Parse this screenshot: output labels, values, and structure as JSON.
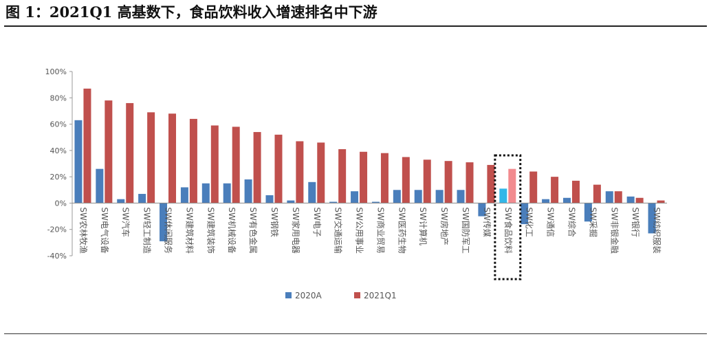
{
  "figure_title": "图 1：2021Q1 高基数下，食品饮料收入增速排名中下游",
  "chart_data": {
    "type": "bar",
    "ylim": [
      -40,
      100
    ],
    "yticks": [
      -40,
      -20,
      0,
      20,
      40,
      60,
      80,
      100
    ],
    "ytick_labels": [
      "-40%",
      "-20%",
      "0%",
      "20%",
      "40%",
      "60%",
      "80%",
      "100%"
    ],
    "categories": [
      "SW农林牧渔",
      "SW电气设备",
      "SW汽车",
      "SW轻工制造",
      "SW休闲服务",
      "SW建筑材料",
      "SW建筑装饰",
      "SW机械设备",
      "SW有色金属",
      "SW钢铁",
      "SW家用电器",
      "SW电子",
      "SW交通运输",
      "SW公用事业",
      "SW商业贸易",
      "SW医药生物",
      "SW计算机",
      "SW房地产",
      "SW国防军工",
      "SW传媒",
      "SW食品饮料",
      "SW化工",
      "SW通信",
      "SW综合",
      "SW采掘",
      "SW非银金融",
      "SW银行",
      "SW纺织服装"
    ],
    "series": [
      {
        "name": "2020A",
        "color": "#4a7ebb",
        "highlight_color": "#33b7e8",
        "values": [
          63,
          26,
          3,
          7,
          -29,
          12,
          15,
          15,
          18,
          6,
          2,
          16,
          1,
          9,
          1,
          10,
          10,
          10,
          10,
          -10,
          11,
          -16,
          3,
          4,
          -14,
          9,
          5,
          -23
        ]
      },
      {
        "name": "2021Q1",
        "color": "#c0504d",
        "highlight_color": "#f28b8f",
        "values": [
          87,
          78,
          76,
          69,
          68,
          64,
          59,
          58,
          54,
          52,
          47,
          46,
          41,
          39,
          38,
          35,
          33,
          32,
          31,
          29,
          26,
          24,
          20,
          17,
          14,
          9,
          4,
          2
        ]
      }
    ],
    "highlight_category": "SW食品饮料",
    "legend_position": "bottom",
    "grid": false
  }
}
